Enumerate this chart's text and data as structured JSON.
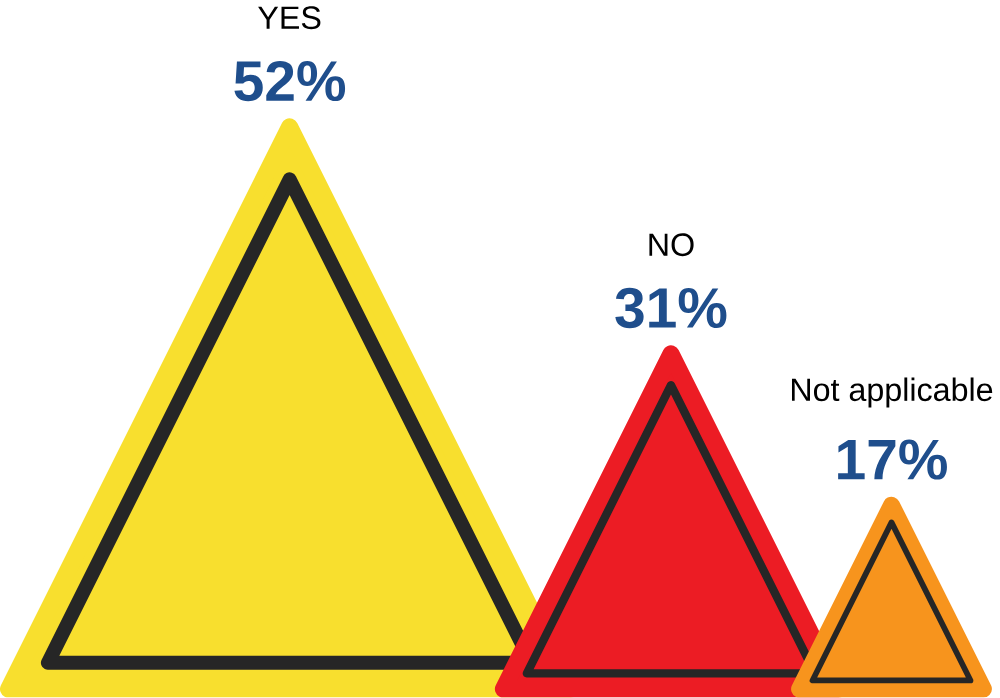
{
  "chart_data": {
    "type": "other",
    "categories": [
      "YES",
      "NO",
      "Not applicable"
    ],
    "values": [
      52,
      31,
      17
    ],
    "value_labels": [
      "52%",
      "31%",
      "17%"
    ],
    "colors": [
      "#f8df2e",
      "#ec1c24",
      "#f7941d"
    ]
  }
}
